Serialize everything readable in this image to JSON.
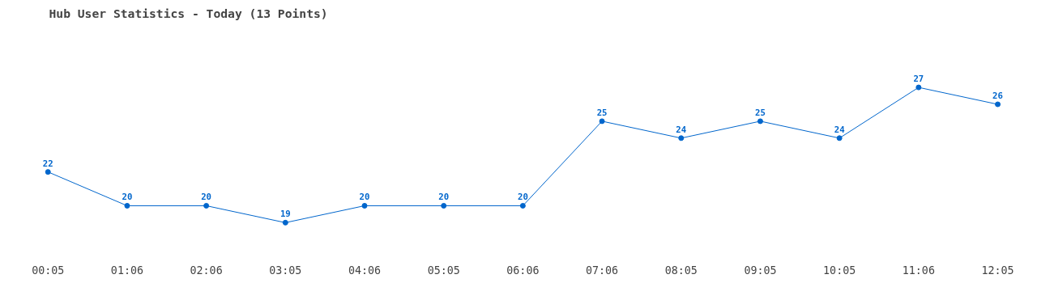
{
  "chart_data": {
    "type": "line",
    "title": "Hub User Statistics - Today (13 Points)",
    "categories": [
      "00:05",
      "01:06",
      "02:06",
      "03:05",
      "04:06",
      "05:05",
      "06:06",
      "07:06",
      "08:05",
      "09:05",
      "10:05",
      "11:06",
      "12:05"
    ],
    "series": [
      {
        "color": "#0066cc",
        "values": [
          22,
          20,
          20,
          19,
          20,
          20,
          20,
          25,
          24,
          25,
          24,
          27,
          26
        ]
      }
    ],
    "data_labels": true,
    "marker": "circle",
    "line_style": "solid",
    "grid": false
  }
}
